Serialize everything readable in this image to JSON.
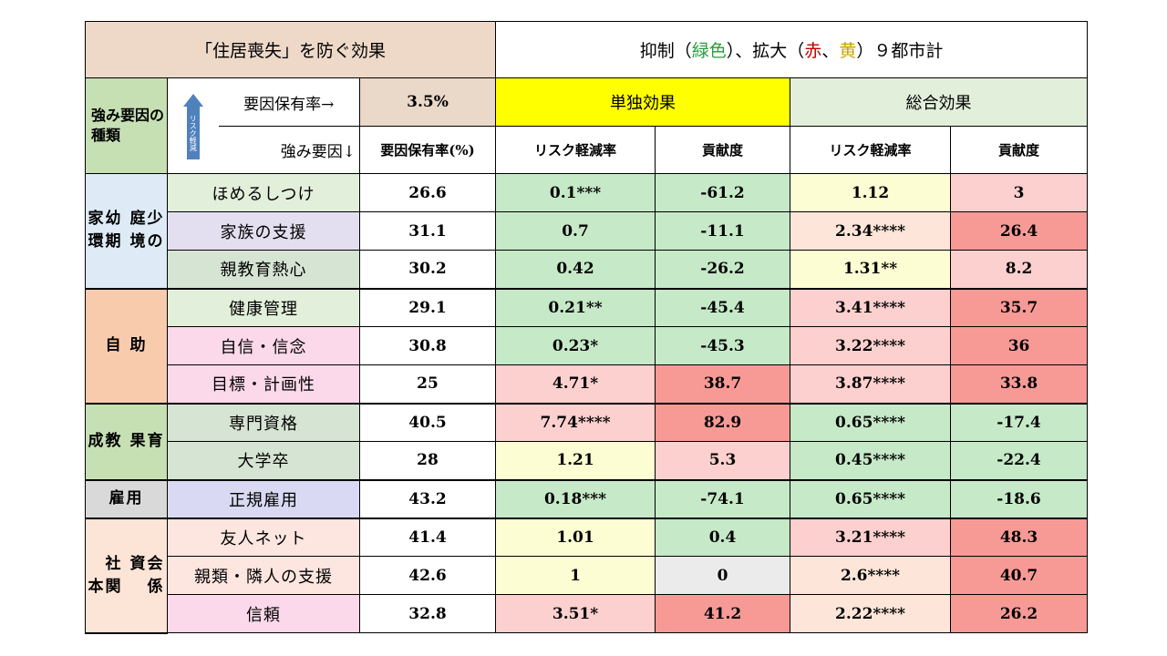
{
  "header": {
    "left_title": "「住居喪失」を防ぐ効果",
    "right_title": {
      "p1": "抑制（",
      "green": "緑色",
      "p2": "）、拡大（",
      "red": "赤",
      "p3": "、",
      "yellow": "黄",
      "p4": "）９都市計"
    }
  },
  "columns": {
    "strength_type": "強み要因の種類",
    "arrow_label": "リスク軽減",
    "factor_rate_label": "要因保有率→",
    "factor_rate_value": "3.5%",
    "strength_factor_label": "強み要因↓",
    "rate_header": "要因保有率(%)",
    "single_effect": "単独効果",
    "total_effect": "総合効果",
    "risk_reduction": "リスク軽減率",
    "contribution": "貢献度"
  },
  "colors": {
    "green": "#c6e9c8",
    "red_strong": "#f79a96",
    "red_light": "#fcd0cf",
    "peach": "#fde6d9",
    "yellow_light": "#fdfdd3",
    "gray": "#ebebeb"
  },
  "rows": [
    {
      "group": "幼少期の家庭環境",
      "factor": "ほめるしつけ",
      "rate": "26.6",
      "s_rate": "0.1***",
      "s_contrib": "-61.2",
      "t_rate": "1.12",
      "t_contrib": "3"
    },
    {
      "group": "幼少期の家庭環境",
      "factor": "家族の支援",
      "rate": "31.1",
      "s_rate": "0.7",
      "s_contrib": "-11.1",
      "t_rate": "2.34****",
      "t_contrib": "26.4"
    },
    {
      "group": "幼少期の家庭環境",
      "factor": "親教育熱心",
      "rate": "30.2",
      "s_rate": "0.42",
      "s_contrib": "-26.2",
      "t_rate": "1.31**",
      "t_contrib": "8.2"
    },
    {
      "group": "自助",
      "factor": "健康管理",
      "rate": "29.1",
      "s_rate": "0.21**",
      "s_contrib": "-45.4",
      "t_rate": "3.41****",
      "t_contrib": "35.7"
    },
    {
      "group": "自助",
      "factor": "自信・信念",
      "rate": "30.8",
      "s_rate": "0.23*",
      "s_contrib": "-45.3",
      "t_rate": "3.22****",
      "t_contrib": "36"
    },
    {
      "group": "自助",
      "factor": "目標・計画性",
      "rate": "25",
      "s_rate": "4.71*",
      "s_contrib": "38.7",
      "t_rate": "3.87****",
      "t_contrib": "33.8"
    },
    {
      "group": "教育成果",
      "factor": "専門資格",
      "rate": "40.5",
      "s_rate": "7.74****",
      "s_contrib": "82.9",
      "t_rate": "0.65****",
      "t_contrib": "-17.4"
    },
    {
      "group": "教育成果",
      "factor": "大学卒",
      "rate": "28",
      "s_rate": "1.21",
      "s_contrib": "5.3",
      "t_rate": "0.45****",
      "t_contrib": "-22.4"
    },
    {
      "group": "雇用",
      "factor": "正規雇用",
      "rate": "43.2",
      "s_rate": "0.18***",
      "s_contrib": "-74.1",
      "t_rate": "0.65****",
      "t_contrib": "-18.6"
    },
    {
      "group": "社会関係資本",
      "factor": "友人ネット",
      "rate": "41.4",
      "s_rate": "1.01",
      "s_contrib": "0.4",
      "t_rate": "3.21****",
      "t_contrib": "48.3"
    },
    {
      "group": "社会関係資本",
      "factor": "親類・隣人の支援",
      "rate": "42.6",
      "s_rate": "1",
      "s_contrib": "0",
      "t_rate": "2.6****",
      "t_contrib": "40.7"
    },
    {
      "group": "社会関係資本",
      "factor": "信頼",
      "rate": "32.8",
      "s_rate": "3.51*",
      "s_contrib": "41.2",
      "t_rate": "2.22****",
      "t_contrib": "26.2"
    }
  ],
  "groups": {
    "g1": "家幼\n庭少\n環期\n境の",
    "g2": "自\n助",
    "g3": "成教\n果育",
    "g4": "雇用",
    "g5": "　社\n資会\n本関\n　係"
  }
}
